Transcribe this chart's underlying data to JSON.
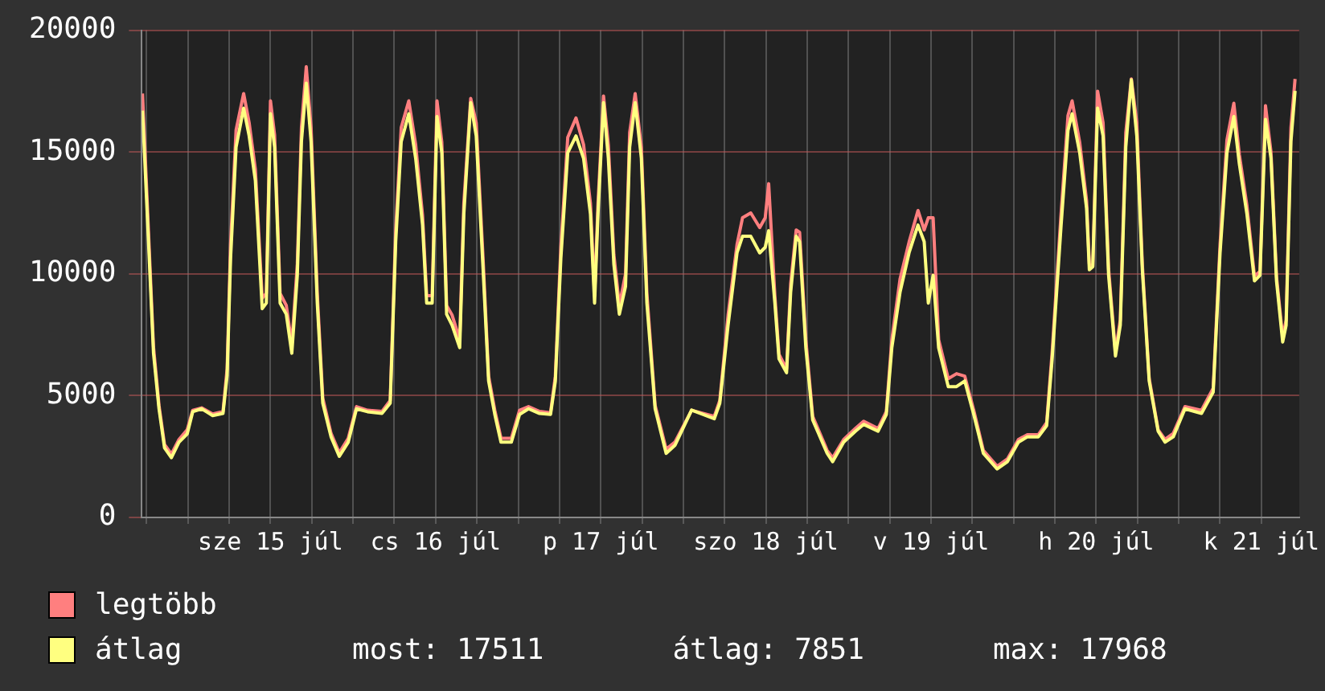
{
  "chart_data": {
    "type": "line",
    "x": [
      "--07-14T17:24",
      "--07-14T18:12",
      "--07-14T19:00",
      "--07-14T19:48",
      "--07-14T20:36",
      "--07-14T21:36",
      "--07-14T22:42",
      "--07-14T23:54",
      "--07-15T00:42",
      "--07-15T02:00",
      "--07-15T03:36",
      "--07-15T05:06",
      "--07-15T05:42",
      "--07-15T06:12",
      "--07-15T07:00",
      "--07-15T08:06",
      "--07-15T08:54",
      "--07-15T09:48",
      "--07-15T10:48",
      "--07-15T11:24",
      "--07-15T12:00",
      "--07-15T12:36",
      "--07-15T13:24",
      "--07-15T14:18",
      "--07-15T15:06",
      "--07-15T15:54",
      "--07-15T16:30",
      "--07-15T17:12",
      "--07-15T17:54",
      "--07-15T18:48",
      "--07-15T19:36",
      "--07-15T20:48",
      "--07-15T22:00",
      "--07-15T23:18",
      "--07-16T00:30",
      "--07-16T02:06",
      "--07-16T04:12",
      "--07-16T05:24",
      "--07-16T06:12",
      "--07-16T07:00",
      "--07-16T08:06",
      "--07-16T09:06",
      "--07-16T10:06",
      "--07-16T10:42",
      "--07-16T11:30",
      "--07-16T12:12",
      "--07-16T12:54",
      "--07-16T13:36",
      "--07-16T14:24",
      "--07-16T15:30",
      "--07-16T16:06",
      "--07-16T17:06",
      "--07-16T17:54",
      "--07-16T18:54",
      "--07-16T19:42",
      "--07-16T20:36",
      "--07-16T21:30",
      "--07-16T23:00",
      "--07-17T00:12",
      "--07-17T01:30",
      "--07-17T03:06",
      "--07-17T04:42",
      "--07-17T05:24",
      "--07-17T06:12",
      "--07-17T07:12",
      "--07-17T08:24",
      "--07-17T09:30",
      "--07-17T10:30",
      "--07-17T11:06",
      "--07-17T11:36",
      "--07-17T12:24",
      "--07-17T13:06",
      "--07-17T13:54",
      "--07-17T14:42",
      "--07-17T15:36",
      "--07-17T16:12",
      "--07-17T17:00",
      "--07-17T17:54",
      "--07-17T18:42",
      "--07-17T19:54",
      "--07-17T21:30",
      "--07-17T22:48",
      "--07-18T01:12",
      "--07-18T04:30",
      "--07-18T05:18",
      "--07-18T06:30",
      "--07-18T07:48",
      "--07-18T08:36",
      "--07-18T09:48",
      "--07-18T11:06",
      "--07-18T11:54",
      "--07-18T12:24",
      "--07-18T13:18",
      "--07-18T13:54",
      "--07-18T15:00",
      "--07-18T15:36",
      "--07-18T16:24",
      "--07-18T16:54",
      "--07-18T17:48",
      "--07-18T18:48",
      "--07-18T20:54",
      "--07-18T21:42",
      "--07-18T23:18",
      "--07-19T01:00",
      "--07-19T02:12",
      "--07-19T04:18",
      "--07-19T05:30",
      "--07-19T06:18",
      "--07-19T07:30",
      "--07-19T08:48",
      "--07-19T10:06",
      "--07-19T11:00",
      "--07-19T11:36",
      "--07-19T12:18",
      "--07-19T13:06",
      "--07-19T14:30",
      "--07-19T15:42",
      "--07-19T16:54",
      "--07-19T18:12",
      "--07-19T19:36",
      "--07-19T21:36",
      "--07-19T23:06",
      "--07-20T00:42",
      "--07-20T02:00",
      "--07-20T03:36",
      "--07-20T04:48",
      "--07-20T05:36",
      "--07-20T06:54",
      "--07-20T07:54",
      "--07-20T08:30",
      "--07-20T09:36",
      "--07-20T10:36",
      "--07-20T11:00",
      "--07-20T11:30",
      "--07-20T12:12",
      "--07-20T13:00",
      "--07-20T13:48",
      "--07-20T14:48",
      "--07-20T15:30",
      "--07-20T16:18",
      "--07-20T17:06",
      "--07-20T17:54",
      "--07-20T18:42",
      "--07-20T19:42",
      "--07-20T21:00",
      "--07-20T22:00",
      "--07-20T23:12",
      "--07-21T00:54",
      "--07-21T03:18",
      "--07-21T05:00",
      "--07-21T06:00",
      "--07-21T07:00",
      "--07-21T08:00",
      "--07-21T08:48",
      "--07-21T09:54",
      "--07-21T11:00",
      "--07-21T11:48",
      "--07-21T12:36",
      "--07-21T13:24",
      "--07-21T14:12",
      "--07-21T15:06",
      "--07-21T15:36",
      "--07-21T16:18",
      "--07-21T16:54"
    ],
    "series": [
      {
        "name": "legtöbb",
        "color": "#ff7f7f",
        "values": [
          17400,
          12200,
          7000,
          4600,
          3000,
          2600,
          3200,
          3600,
          4400,
          4500,
          4250,
          4350,
          6100,
          11200,
          15900,
          17400,
          16200,
          14300,
          9000,
          9200,
          17100,
          15700,
          9200,
          8700,
          7100,
          10400,
          16000,
          18500,
          16000,
          9200,
          4900,
          3450,
          2650,
          3250,
          4550,
          4400,
          4350,
          4800,
          11800,
          16000,
          17100,
          15300,
          12400,
          9100,
          9100,
          17100,
          15400,
          8700,
          8300,
          7300,
          12900,
          17200,
          16200,
          10600,
          5800,
          4400,
          3250,
          3250,
          4400,
          4550,
          4350,
          4300,
          5800,
          11100,
          15600,
          16400,
          15300,
          12900,
          9100,
          12900,
          17300,
          15300,
          10800,
          8700,
          10000,
          15800,
          17400,
          15200,
          9200,
          4600,
          2800,
          3100,
          4400,
          4150,
          4800,
          8300,
          11200,
          12300,
          12500,
          11900,
          12300,
          13700,
          9100,
          6700,
          6100,
          9600,
          11800,
          11700,
          7300,
          4150,
          2750,
          2450,
          3200,
          3650,
          3950,
          3650,
          4350,
          7300,
          9800,
          11300,
          12600,
          11800,
          12300,
          12300,
          7300,
          5700,
          5900,
          5800,
          4400,
          2750,
          2100,
          2400,
          3200,
          3400,
          3400,
          3900,
          6800,
          12500,
          16500,
          17100,
          15400,
          13000,
          10400,
          10300,
          17500,
          16200,
          10200,
          6800,
          8100,
          15800,
          18000,
          16200,
          10400,
          5700,
          3600,
          3200,
          3450,
          4550,
          4400,
          5300,
          11200,
          15500,
          17000,
          14900,
          12800,
          9900,
          10100,
          16900,
          15000,
          9900,
          7400,
          8100,
          16000,
          18000
        ]
      },
      {
        "name": "átlag",
        "color": "#ffff80",
        "values": [
          16700,
          11770,
          6740,
          4460,
          2860,
          2450,
          3090,
          3430,
          4340,
          4460,
          4180,
          4270,
          5830,
          10630,
          15200,
          16800,
          15660,
          13830,
          8570,
          8800,
          16570,
          15200,
          8800,
          8340,
          6740,
          9940,
          15430,
          17830,
          15430,
          8800,
          4690,
          3310,
          2510,
          3090,
          4460,
          4340,
          4270,
          4690,
          11320,
          15430,
          16570,
          14740,
          12000,
          8800,
          8800,
          16460,
          14970,
          8340,
          7890,
          6970,
          12460,
          17030,
          15660,
          10170,
          5600,
          4230,
          3090,
          3090,
          4230,
          4460,
          4270,
          4230,
          5600,
          10630,
          14970,
          15660,
          14740,
          12460,
          8800,
          12460,
          17030,
          14740,
          10400,
          8340,
          9490,
          15200,
          17030,
          14740,
          8800,
          4460,
          2630,
          2970,
          4410,
          4050,
          4690,
          7890,
          10860,
          11540,
          11540,
          10860,
          11090,
          11770,
          8800,
          6510,
          5940,
          9260,
          11540,
          11320,
          6970,
          4000,
          2630,
          2290,
          3090,
          3540,
          3820,
          3540,
          4230,
          6970,
          9260,
          10860,
          12000,
          11320,
          8800,
          9940,
          6970,
          5370,
          5370,
          5600,
          4230,
          2630,
          1990,
          2290,
          3090,
          3310,
          3310,
          3770,
          6510,
          12000,
          15890,
          16570,
          14970,
          12690,
          10170,
          10290,
          16800,
          15660,
          9940,
          6630,
          7890,
          15200,
          17968,
          15660,
          10170,
          5600,
          3540,
          3090,
          3310,
          4460,
          4270,
          5140,
          10860,
          14970,
          16460,
          14510,
          12460,
          9710,
          9940,
          16340,
          14740,
          9710,
          7200,
          7890,
          15430,
          17511
        ]
      }
    ],
    "xlim": [
      "--07-14T17:18",
      "--07-21T17:30"
    ],
    "xticks": [
      {
        "value": "--07-14T18:00",
        "label": null
      },
      {
        "value": "--07-15T00:00",
        "label": null
      },
      {
        "value": "--07-15T06:00",
        "label": null
      },
      {
        "value": "--07-15T12:00",
        "label": "sze 15 júl"
      },
      {
        "value": "--07-15T18:00",
        "label": null
      },
      {
        "value": "--07-16T00:00",
        "label": null
      },
      {
        "value": "--07-16T06:00",
        "label": null
      },
      {
        "value": "--07-16T12:00",
        "label": "cs 16 júl"
      },
      {
        "value": "--07-16T18:00",
        "label": null
      },
      {
        "value": "--07-17T00:00",
        "label": null
      },
      {
        "value": "--07-17T06:00",
        "label": null
      },
      {
        "value": "--07-17T12:00",
        "label": "p 17 júl"
      },
      {
        "value": "--07-17T18:00",
        "label": null
      },
      {
        "value": "--07-18T00:00",
        "label": null
      },
      {
        "value": "--07-18T06:00",
        "label": null
      },
      {
        "value": "--07-18T12:00",
        "label": "szo 18 júl"
      },
      {
        "value": "--07-18T18:00",
        "label": null
      },
      {
        "value": "--07-19T00:00",
        "label": null
      },
      {
        "value": "--07-19T06:00",
        "label": null
      },
      {
        "value": "--07-19T12:00",
        "label": "v 19 júl"
      },
      {
        "value": "--07-19T18:00",
        "label": null
      },
      {
        "value": "--07-20T00:00",
        "label": null
      },
      {
        "value": "--07-20T06:00",
        "label": null
      },
      {
        "value": "--07-20T12:00",
        "label": "h 20 júl"
      },
      {
        "value": "--07-20T18:00",
        "label": null
      },
      {
        "value": "--07-21T00:00",
        "label": null
      },
      {
        "value": "--07-21T06:00",
        "label": null
      },
      {
        "value": "--07-21T12:00",
        "label": "k 21 júl"
      }
    ],
    "ylim": [
      0,
      20000
    ],
    "yticks": [
      0,
      5000,
      10000,
      15000,
      20000
    ],
    "grid": true,
    "legend": "bottom left",
    "marker": "none",
    "line_style": "solid",
    "annotations": [
      "most: 17511",
      "átlag: 7851",
      "max: 17968"
    ]
  }
}
